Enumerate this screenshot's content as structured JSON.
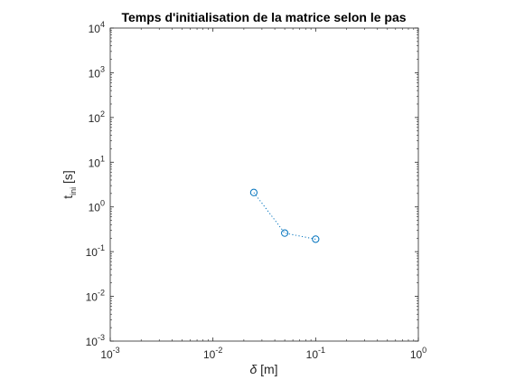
{
  "chart_data": {
    "type": "scatter",
    "title": "Temps d'initialisation de la matrice selon le pas",
    "xlabel": {
      "symbol": "δ",
      "unit": " [m]"
    },
    "ylabel": {
      "base": "t",
      "subscript": "ini",
      "unit": " [s]"
    },
    "x_scale": "log",
    "y_scale": "log",
    "xlim": [
      0.001,
      1
    ],
    "ylim": [
      0.001,
      10000
    ],
    "x_ticks": [
      {
        "value": 0.001,
        "base": "10",
        "exp": "-3"
      },
      {
        "value": 0.01,
        "base": "10",
        "exp": "-2"
      },
      {
        "value": 0.1,
        "base": "10",
        "exp": "-1"
      },
      {
        "value": 1,
        "base": "10",
        "exp": "0"
      }
    ],
    "y_ticks": [
      {
        "value": 0.001,
        "base": "10",
        "exp": "-3"
      },
      {
        "value": 0.01,
        "base": "10",
        "exp": "-2"
      },
      {
        "value": 0.1,
        "base": "10",
        "exp": "-1"
      },
      {
        "value": 1,
        "base": "10",
        "exp": "0"
      },
      {
        "value": 10,
        "base": "10",
        "exp": "1"
      },
      {
        "value": 100,
        "base": "10",
        "exp": "2"
      },
      {
        "value": 1000,
        "base": "10",
        "exp": "3"
      },
      {
        "value": 10000,
        "base": "10",
        "exp": "4"
      }
    ],
    "grid": false,
    "series": [
      {
        "marker": "circle",
        "line_style": "dotted",
        "color": "#0072BD",
        "x": [
          0.025,
          0.05,
          0.1
        ],
        "y": [
          2.1,
          0.26,
          0.19
        ]
      }
    ]
  }
}
